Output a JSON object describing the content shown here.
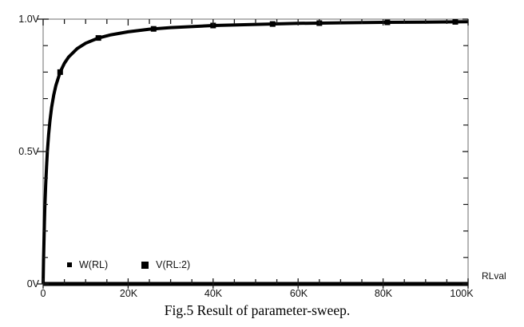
{
  "figure": {
    "caption": "Fig.5 Result of parameter-sweep.",
    "x_axis_variable": "RLval"
  },
  "chart_data": {
    "type": "line",
    "title": "",
    "xlabel": "RLval",
    "ylabel": "V",
    "xlim": [
      0,
      100000
    ],
    "ylim": [
      0,
      1.0
    ],
    "grid": false,
    "legend_position": "bottom-left-inside",
    "x_ticks_major": [
      0,
      20000,
      40000,
      60000,
      80000,
      100000
    ],
    "x_tick_labels": [
      "0",
      "20K",
      "40K",
      "60K",
      "80K",
      "100K"
    ],
    "x_minor_step": 5000,
    "y_ticks_major": [
      0,
      0.5,
      1.0
    ],
    "y_tick_labels": [
      "0V",
      "0.5V",
      "1.0V"
    ],
    "y_minor_step": 0.1,
    "colors": {
      "trace": "#000000",
      "frame": "#8f8f8f",
      "tick": "#1a1a1a"
    },
    "legend": [
      {
        "label": "W(RL)",
        "marker": "small-square"
      },
      {
        "label": "V(RL:2)",
        "marker": "square"
      }
    ],
    "series": [
      {
        "name": "W(RL)",
        "x": [
          0,
          100000
        ],
        "y": [
          0,
          0
        ],
        "marker_x": []
      },
      {
        "name": "V(RL:2)",
        "x": [
          0,
          100,
          200,
          300,
          400,
          600,
          800,
          1000,
          1300,
          1600,
          2000,
          2500,
          3000,
          4000,
          5000,
          6000,
          8000,
          10000,
          13000,
          16000,
          20000,
          25000,
          30000,
          40000,
          50000,
          60000,
          70000,
          80000,
          90000,
          100000
        ],
        "y": [
          0,
          0.091,
          0.167,
          0.231,
          0.286,
          0.375,
          0.444,
          0.5,
          0.565,
          0.615,
          0.667,
          0.714,
          0.75,
          0.8,
          0.833,
          0.857,
          0.889,
          0.909,
          0.929,
          0.941,
          0.952,
          0.962,
          0.968,
          0.976,
          0.98,
          0.984,
          0.986,
          0.988,
          0.989,
          0.99
        ],
        "marker_x": [
          4000,
          13000,
          26000,
          40000,
          54000,
          65000,
          81000,
          97000
        ]
      }
    ]
  }
}
